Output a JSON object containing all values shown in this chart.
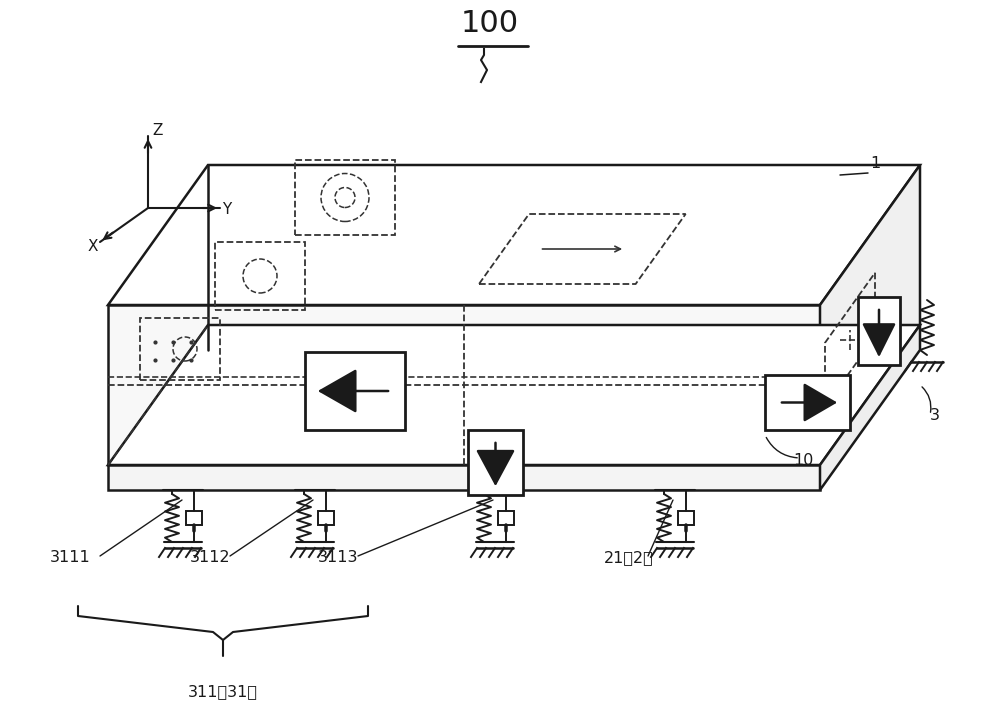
{
  "bg_color": "#ffffff",
  "lc": "#1a1a1a",
  "dc": "#333333",
  "label_100": "100",
  "label_1": "1",
  "label_3": "3",
  "label_10": "10",
  "label_3111": "3111",
  "label_3112": "3112",
  "label_3113": "3113",
  "label_311": "311（31）",
  "label_21": "21（2）",
  "label_Z": "Z",
  "label_Y": "Y",
  "label_X": "X",
  "fig_width": 10.0,
  "fig_height": 7.18
}
